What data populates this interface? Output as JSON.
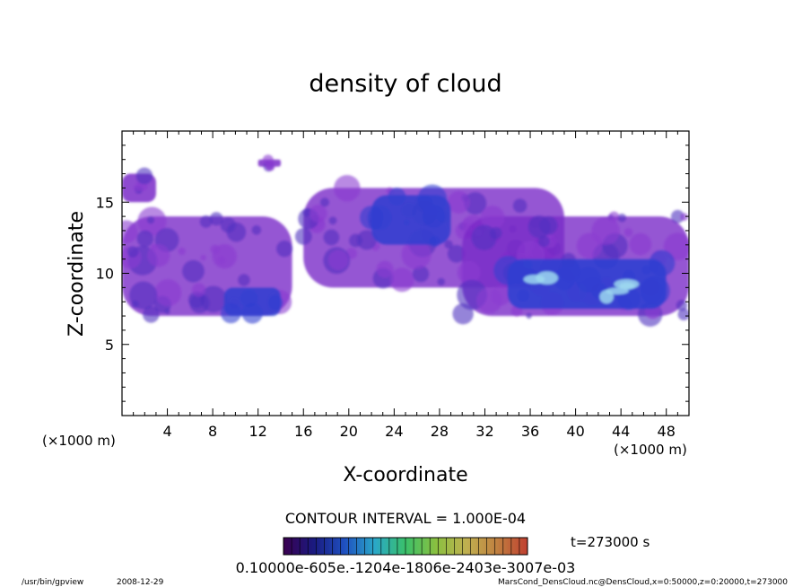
{
  "chart_data": {
    "type": "heatmap",
    "title": "density of cloud",
    "xlabel": "X-coordinate",
    "ylabel": "Z-coordinate",
    "x_unit_left": "(×1000 m)",
    "x_unit_right": "(×1000 m)",
    "xlim": [
      0,
      50
    ],
    "ylim": [
      0,
      20
    ],
    "x_ticks": [
      4,
      8,
      12,
      16,
      20,
      24,
      28,
      32,
      36,
      40,
      44,
      48
    ],
    "y_ticks": [
      5,
      10,
      15
    ],
    "contour_interval_text": "CONTOUR INTERVAL = 1.000E-04",
    "time_text": "t=273000 s",
    "colorbar_labels_text": "0.10000e-605e.-1204e-1806e-2403e-3007e-03",
    "colorbar_colors": [
      "#3a0050",
      "#1a1a80",
      "#1f50c0",
      "#2aa8c8",
      "#3ac06a",
      "#8ac040",
      "#c0b050",
      "#c08040",
      "#c04030"
    ],
    "cloud_color_base": "#7a2ac8",
    "cloud_color_core": "#3040d0",
    "cloud_color_peak": "#9ed8f0",
    "regions": [
      {
        "name": "upper-left band",
        "x": [
          0,
          3
        ],
        "z": [
          15,
          17
        ],
        "level": "low"
      },
      {
        "name": "mid-left layer",
        "x": [
          0,
          15
        ],
        "z": [
          7,
          14
        ],
        "level": "medium"
      },
      {
        "name": "left core",
        "x": [
          9,
          14
        ],
        "z": [
          7,
          9
        ],
        "level": "high"
      },
      {
        "name": "small cap",
        "x": [
          12,
          14
        ],
        "z": [
          17.5,
          18
        ],
        "level": "low"
      },
      {
        "name": "central anvil",
        "x": [
          16,
          39
        ],
        "z": [
          9,
          16
        ],
        "level": "medium"
      },
      {
        "name": "central core",
        "x": [
          22,
          29
        ],
        "z": [
          12,
          15.5
        ],
        "level": "high"
      },
      {
        "name": "right layer",
        "x": [
          30,
          50
        ],
        "z": [
          7,
          14
        ],
        "level": "medium"
      },
      {
        "name": "right core",
        "x": [
          34,
          48
        ],
        "z": [
          7.5,
          11
        ],
        "level": "peak"
      }
    ]
  },
  "footer": {
    "program": "/usr/bin/gpview",
    "date": "2008-12-29",
    "source": "MarsCond_DensCloud.nc@DensCloud,x=0:50000,z=0:20000,t=273000"
  }
}
